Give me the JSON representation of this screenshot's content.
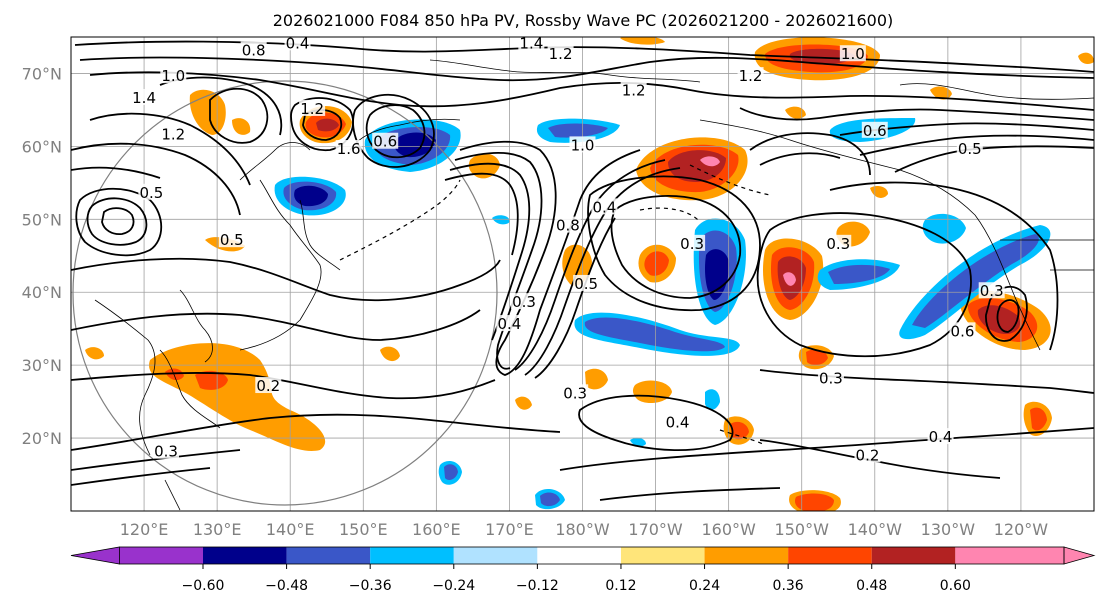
{
  "title": "2026021000 F084 850 hPa PV, Rossby Wave PC (2026021200 - 2026021600)",
  "map": {
    "lat_labels": [
      {
        "lat": 70,
        "label": "70°N"
      },
      {
        "lat": 60,
        "label": "60°N"
      },
      {
        "lat": 50,
        "label": "50°N"
      },
      {
        "lat": 40,
        "label": "40°N"
      },
      {
        "lat": 30,
        "label": "30°N"
      },
      {
        "lat": 20,
        "label": "20°N"
      }
    ],
    "lon_labels": [
      {
        "lon": 120,
        "label": "120°E"
      },
      {
        "lon": 130,
        "label": "130°E"
      },
      {
        "lon": 140,
        "label": "140°E"
      },
      {
        "lon": 150,
        "label": "150°E"
      },
      {
        "lon": 160,
        "label": "160°E"
      },
      {
        "lon": 170,
        "label": "170°E"
      },
      {
        "lon": 180,
        "label": "180°W"
      },
      {
        "lon": 190,
        "label": "170°W"
      },
      {
        "lon": 200,
        "label": "160°W"
      },
      {
        "lon": 210,
        "label": "150°W"
      },
      {
        "lon": 220,
        "label": "140°W"
      },
      {
        "lon": 230,
        "label": "130°W"
      },
      {
        "lon": 240,
        "label": "120°W"
      }
    ],
    "contour_labels": [
      {
        "text": "0.4",
        "lon": 141,
        "lat": 74
      },
      {
        "text": "0.8",
        "lon": 135,
        "lat": 73
      },
      {
        "text": "1.4",
        "lon": 173,
        "lat": 74
      },
      {
        "text": "1.2",
        "lon": 177,
        "lat": 72.5
      },
      {
        "text": "1.0",
        "lon": 217,
        "lat": 72.5
      },
      {
        "text": "1.0",
        "lon": 124,
        "lat": 69.5
      },
      {
        "text": "1.2",
        "lon": 187,
        "lat": 67.5
      },
      {
        "text": "1.2",
        "lon": 143,
        "lat": 65
      },
      {
        "text": "1.2",
        "lon": 203,
        "lat": 69.5
      },
      {
        "text": "1.4",
        "lon": 120,
        "lat": 66.5
      },
      {
        "text": "1.2",
        "lon": 124,
        "lat": 61.5
      },
      {
        "text": "0.6",
        "lon": 153,
        "lat": 60.5
      },
      {
        "text": "1.6",
        "lon": 148,
        "lat": 59.5
      },
      {
        "text": "1.0",
        "lon": 180,
        "lat": 60
      },
      {
        "text": "0.6",
        "lon": 220,
        "lat": 62
      },
      {
        "text": "0.5",
        "lon": 233,
        "lat": 59.5
      },
      {
        "text": "0.5",
        "lon": 121,
        "lat": 53.5
      },
      {
        "text": "0.5",
        "lon": 132,
        "lat": 47
      },
      {
        "text": "0.8",
        "lon": 178,
        "lat": 49
      },
      {
        "text": "0.4",
        "lon": 183,
        "lat": 51.5
      },
      {
        "text": "0.3",
        "lon": 195,
        "lat": 46.5
      },
      {
        "text": "0.3",
        "lon": 215,
        "lat": 46.5
      },
      {
        "text": "0.3",
        "lon": 172,
        "lat": 38.5
      },
      {
        "text": "0.4",
        "lon": 170,
        "lat": 35.5
      },
      {
        "text": "0.5",
        "lon": 180.5,
        "lat": 41
      },
      {
        "text": "0.3",
        "lon": 236,
        "lat": 40
      },
      {
        "text": "0.6",
        "lon": 232,
        "lat": 34.5
      },
      {
        "text": "0.2",
        "lon": 137,
        "lat": 27
      },
      {
        "text": "0.3",
        "lon": 179,
        "lat": 26
      },
      {
        "text": "0.3",
        "lon": 214,
        "lat": 28
      },
      {
        "text": "0.4",
        "lon": 193,
        "lat": 22
      },
      {
        "text": "0.4",
        "lon": 229,
        "lat": 20
      },
      {
        "text": "0.2",
        "lon": 219,
        "lat": 17.5
      },
      {
        "text": "0.3",
        "lon": 123,
        "lat": 18
      }
    ]
  },
  "colorbar": {
    "tick_labels": [
      "−0.60",
      "−0.48",
      "−0.36",
      "−0.24",
      "−0.12",
      "0.12",
      "0.24",
      "0.36",
      "0.48",
      "0.60"
    ],
    "colors": [
      "#9932cc",
      "#00008b",
      "#3a57c8",
      "#00bfff",
      "#b0e2ff",
      "#ffffff",
      "#ffe57a",
      "#ff9d00",
      "#ff4500",
      "#b22222",
      "#ff85b0"
    ]
  }
}
